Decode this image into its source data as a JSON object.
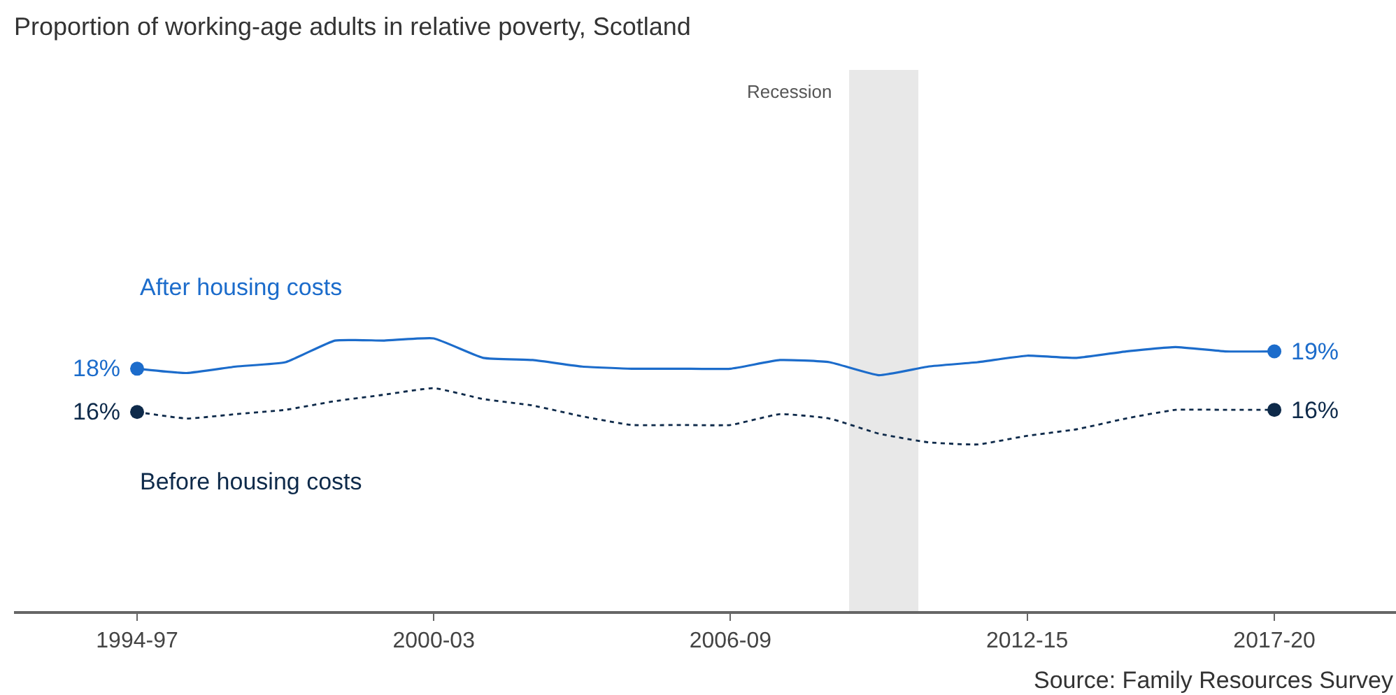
{
  "chart_data": {
    "type": "line",
    "title": "Proportion of working-age adults in relative poverty, Scotland",
    "legend": false,
    "grid": false,
    "tick_labels": "x",
    "categories": [
      "1994-97",
      null,
      null,
      null,
      null,
      null,
      "2000-03",
      null,
      null,
      null,
      null,
      null,
      "2006-09",
      null,
      null,
      null,
      null,
      null,
      "2012-15",
      null,
      null,
      null,
      null,
      "2017-20"
    ],
    "series": [
      {
        "name": "After housing costs",
        "color": "#1c6ccb",
        "line_style": "solid",
        "values": [
          18,
          17.8,
          18.1,
          18.3,
          19.3,
          19.3,
          19.4,
          18.5,
          18.4,
          18.1,
          18,
          18,
          18,
          18.4,
          18.3,
          17.7,
          18.1,
          18.3,
          18.6,
          18.5,
          18.8,
          19.0,
          18.8,
          18.8
        ],
        "value_labels": [
          "18%",
          null,
          null,
          null,
          null,
          null,
          null,
          null,
          null,
          null,
          null,
          null,
          null,
          null,
          null,
          null,
          null,
          null,
          null,
          null,
          null,
          null,
          null,
          "19%"
        ]
      },
      {
        "name": "Before housing costs",
        "color": "#0e2a4a",
        "line_style": "dashed",
        "values": [
          16.0,
          15.7,
          15.9,
          16.1,
          16.5,
          16.8,
          17.1,
          16.6,
          16.3,
          15.8,
          15.4,
          15.4,
          15.4,
          15.9,
          15.7,
          15.0,
          14.6,
          14.5,
          14.9,
          15.2,
          15.7,
          16.1,
          16.1,
          16.1
        ],
        "value_labels": [
          "16%",
          null,
          null,
          null,
          null,
          null,
          null,
          null,
          null,
          null,
          null,
          null,
          null,
          null,
          null,
          null,
          null,
          null,
          null,
          null,
          null,
          null,
          null,
          "16%"
        ]
      }
    ],
    "annotations": [
      "Recession",
      "Source: Family Resources Survey"
    ]
  }
}
